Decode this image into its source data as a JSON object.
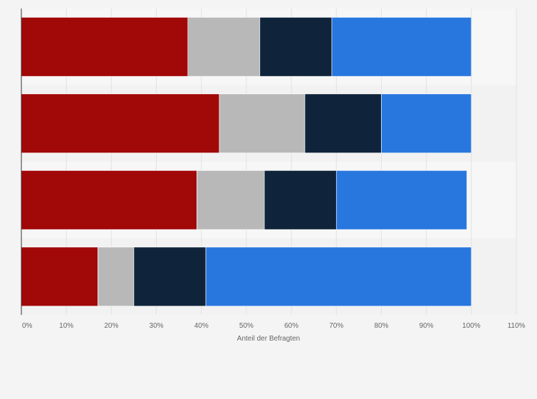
{
  "chart_data": {
    "type": "bar",
    "orientation": "horizontal",
    "stacked": true,
    "categories": [
      "",
      "",
      "",
      ""
    ],
    "series": [
      {
        "values": [
          37,
          44,
          39,
          17
        ],
        "color": "#a10808"
      },
      {
        "values": [
          16,
          19,
          15,
          8
        ],
        "color": "#b8b8b8"
      },
      {
        "values": [
          16,
          17,
          16,
          16
        ],
        "color": "#0f243b"
      },
      {
        "values": [
          31,
          20,
          29,
          59
        ],
        "color": "#2877de"
      }
    ],
    "xlabel": "Anteil der Befragten",
    "ylabel": "",
    "xlim": [
      0,
      110
    ],
    "xticks": [
      {
        "value": 0,
        "label": "0%"
      },
      {
        "value": 10,
        "label": "10%"
      },
      {
        "value": 20,
        "label": "20%"
      },
      {
        "value": 30,
        "label": "30%"
      },
      {
        "value": 40,
        "label": "40%"
      },
      {
        "value": 50,
        "label": "50%"
      },
      {
        "value": 60,
        "label": "60%"
      },
      {
        "value": 70,
        "label": "70%"
      },
      {
        "value": 80,
        "label": "80%"
      },
      {
        "value": 90,
        "label": "90%"
      },
      {
        "value": 100,
        "label": "100%"
      },
      {
        "value": 110,
        "label": "110%"
      }
    ],
    "grid": true,
    "legend": "none"
  }
}
